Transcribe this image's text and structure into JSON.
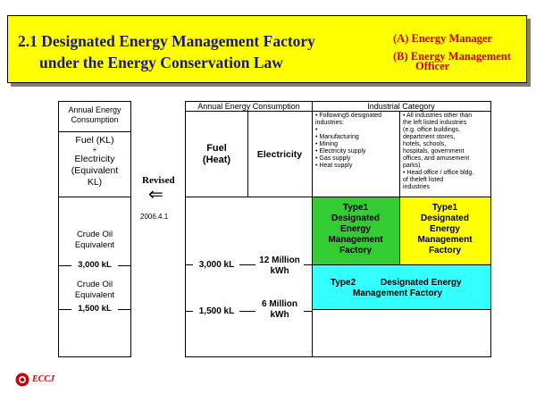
{
  "title": {
    "line1": "2.1 Designated Energy Management Factory",
    "line2": "under the Energy Conservation Law",
    "sub_a": "(A) Energy Manager",
    "sub_b_line1": "(B) Energy Management",
    "sub_b_line2": "Officer"
  },
  "left_table": {
    "header": [
      "Annual Energy",
      "Consumption"
    ],
    "unit_lines": [
      "Fuel (KL)",
      "+",
      "Electricity",
      "(Equivalent",
      "KL)"
    ],
    "crude1": [
      "Crude Oil",
      "Equivalent"
    ],
    "tick1": "3,000 kL",
    "crude2": [
      "Crude Oil",
      "Equivalent"
    ],
    "tick2": "1,500 kL"
  },
  "revised": {
    "label": "Revised",
    "arrow": "⇐",
    "date": "2006.4.1"
  },
  "right_table": {
    "header_left": "Annual Energy Consumption",
    "header_right": "Industrial Category",
    "fuel_label": [
      "Fuel",
      "(Heat)"
    ],
    "elec_label": "Electricity",
    "fuel_tick1": "3,000 kL",
    "fuel_tick2": "1,500 kL",
    "elec_tick1": [
      "12 Million",
      "kWh"
    ],
    "elec_tick2": [
      "6 Million",
      "kWh"
    ],
    "cat1_bullets": [
      "• Following5 designated",
      "  industries:",
      "•",
      "• Manufacturing",
      "• Mining",
      "• Electricity supply",
      "• Gas supply",
      "• Heat supply"
    ],
    "cat2_bullets": [
      "• All industries other than",
      "  the left listed industries",
      "  (e.g. office buildings,",
      "  department stores,",
      "  hotels, schools,",
      "  hospitals, government",
      "  offices, and amusement",
      "  parks)",
      "• Head office / office bldg.",
      "  of theleft listed",
      "  industries"
    ],
    "type1_text": [
      "Type1",
      "Designated",
      "Energy",
      "Management",
      "Factory"
    ],
    "type2_text": [
      "Type2",
      "Designated Energy",
      "Management Factory"
    ]
  },
  "logo": {
    "text": "ECCJ"
  },
  "colors": {
    "banner": "#ffff00",
    "title": "#1a1a7a",
    "subtitle": "#cc0000",
    "type1_manufacturing": "#33cc33",
    "type1_other": "#ffff00",
    "type2": "#33ffff"
  }
}
